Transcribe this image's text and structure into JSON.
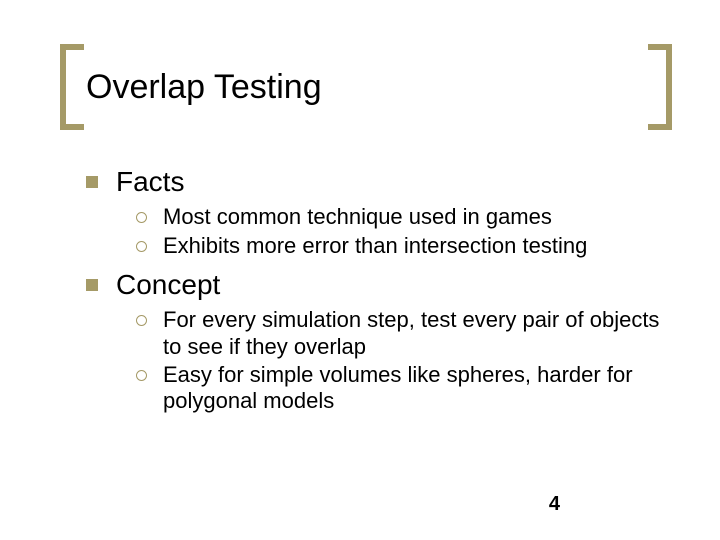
{
  "accent_color": "#a59a67",
  "text_color": "#000000",
  "background_color": "#ffffff",
  "title": "Overlap Testing",
  "title_fontsize": 34,
  "l1_fontsize": 28,
  "l2_fontsize": 22,
  "page_number": "4",
  "sections": [
    {
      "heading": "Facts",
      "items": [
        "Most common technique used in games",
        "Exhibits more error than intersection testing"
      ]
    },
    {
      "heading": "Concept",
      "items": [
        "For every simulation step, test every pair of objects to see if they overlap",
        "Easy for simple volumes like spheres, harder for polygonal models"
      ]
    }
  ]
}
